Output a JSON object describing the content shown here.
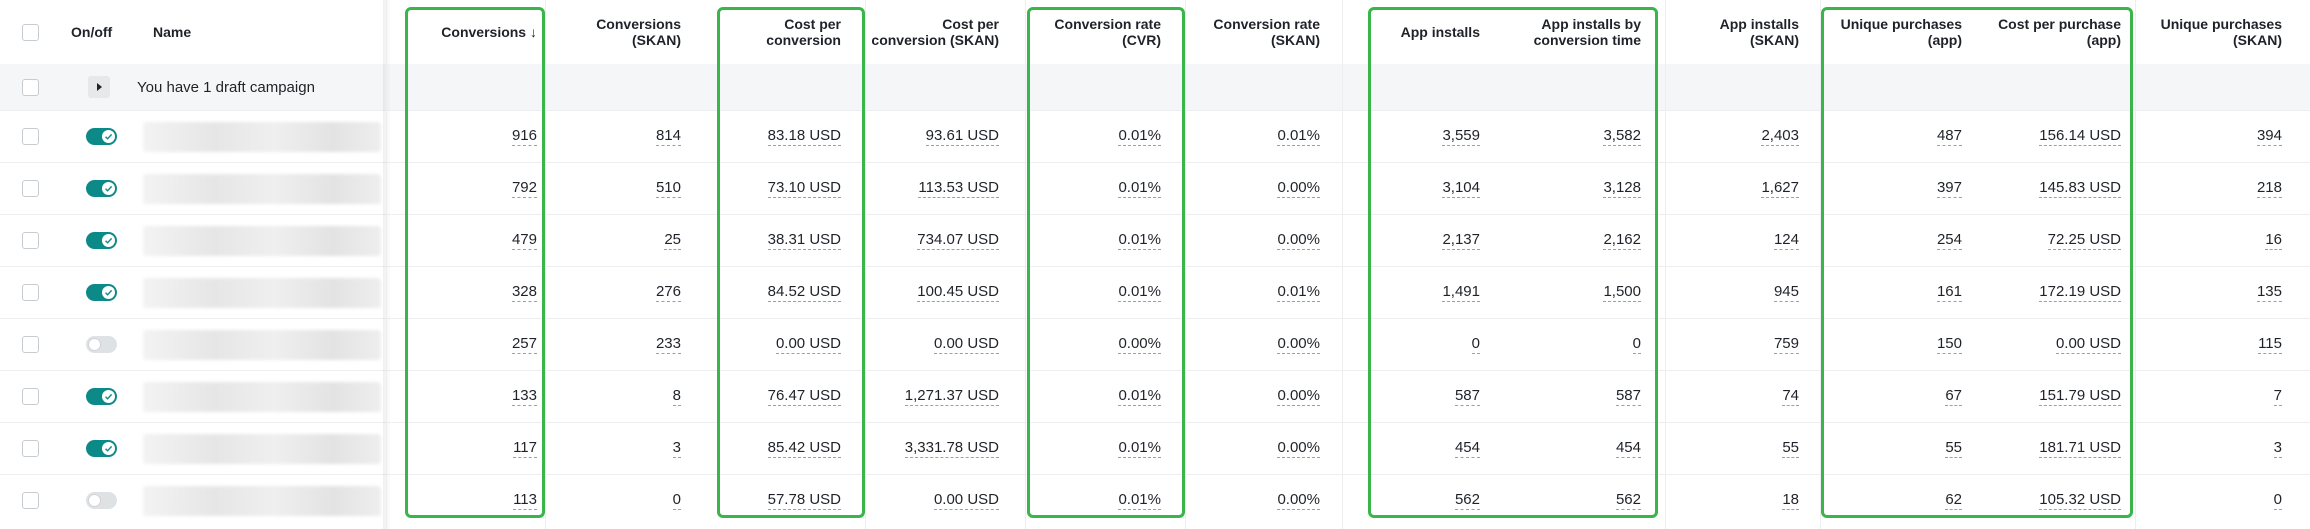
{
  "header": {
    "onoff": "On/off",
    "name": "Name",
    "columns": [
      {
        "line1": "Conversions ↓",
        "line2": ""
      },
      {
        "line1": "Conversions",
        "line2": "(SKAN)"
      },
      {
        "line1": "Cost per",
        "line2": "conversion"
      },
      {
        "line1": "Cost per",
        "line2": "conversion (SKAN)"
      },
      {
        "line1": "Conversion rate",
        "line2": "(CVR)"
      },
      {
        "line1": "Conversion rate",
        "line2": "(SKAN)"
      },
      {
        "line1": "App installs",
        "line2": ""
      },
      {
        "line1": "App installs by",
        "line2": "conversion time"
      },
      {
        "line1": "App installs",
        "line2": "(SKAN)"
      },
      {
        "line1": "Unique purchases",
        "line2": "(app)"
      },
      {
        "line1": "Cost per purchase",
        "line2": "(app)"
      },
      {
        "line1": "Unique purchases",
        "line2": "(SKAN)"
      }
    ]
  },
  "draft": {
    "label": "You have 1 draft campaign"
  },
  "rows": [
    {
      "on": true,
      "values": [
        "916",
        "814",
        "83.18 USD",
        "93.61 USD",
        "0.01%",
        "0.01%",
        "3,559",
        "3,582",
        "2,403",
        "487",
        "156.14 USD",
        "394"
      ]
    },
    {
      "on": true,
      "values": [
        "792",
        "510",
        "73.10 USD",
        "113.53 USD",
        "0.01%",
        "0.00%",
        "3,104",
        "3,128",
        "1,627",
        "397",
        "145.83 USD",
        "218"
      ]
    },
    {
      "on": true,
      "values": [
        "479",
        "25",
        "38.31 USD",
        "734.07 USD",
        "0.01%",
        "0.00%",
        "2,137",
        "2,162",
        "124",
        "254",
        "72.25 USD",
        "16"
      ]
    },
    {
      "on": true,
      "values": [
        "328",
        "276",
        "84.52 USD",
        "100.45 USD",
        "0.01%",
        "0.01%",
        "1,491",
        "1,500",
        "945",
        "161",
        "172.19 USD",
        "135"
      ]
    },
    {
      "on": false,
      "values": [
        "257",
        "233",
        "0.00 USD",
        "0.00 USD",
        "0.00%",
        "0.00%",
        "0",
        "0",
        "759",
        "150",
        "0.00 USD",
        "115"
      ]
    },
    {
      "on": true,
      "values": [
        "133",
        "8",
        "76.47 USD",
        "1,271.37 USD",
        "0.01%",
        "0.00%",
        "587",
        "587",
        "74",
        "67",
        "151.79 USD",
        "7"
      ]
    },
    {
      "on": true,
      "values": [
        "117",
        "3",
        "85.42 USD",
        "3,331.78 USD",
        "0.01%",
        "0.00%",
        "454",
        "454",
        "55",
        "55",
        "181.71 USD",
        "3"
      ]
    },
    {
      "on": false,
      "values": [
        "113",
        "0",
        "57.78 USD",
        "0.00 USD",
        "0.01%",
        "0.00%",
        "562",
        "562",
        "18",
        "62",
        "105.32 USD",
        "0"
      ]
    }
  ],
  "colors": {
    "highlight": "#3ab54a",
    "toggle_on": "#0c8a87",
    "toggle_off": "#dfe2e5"
  }
}
